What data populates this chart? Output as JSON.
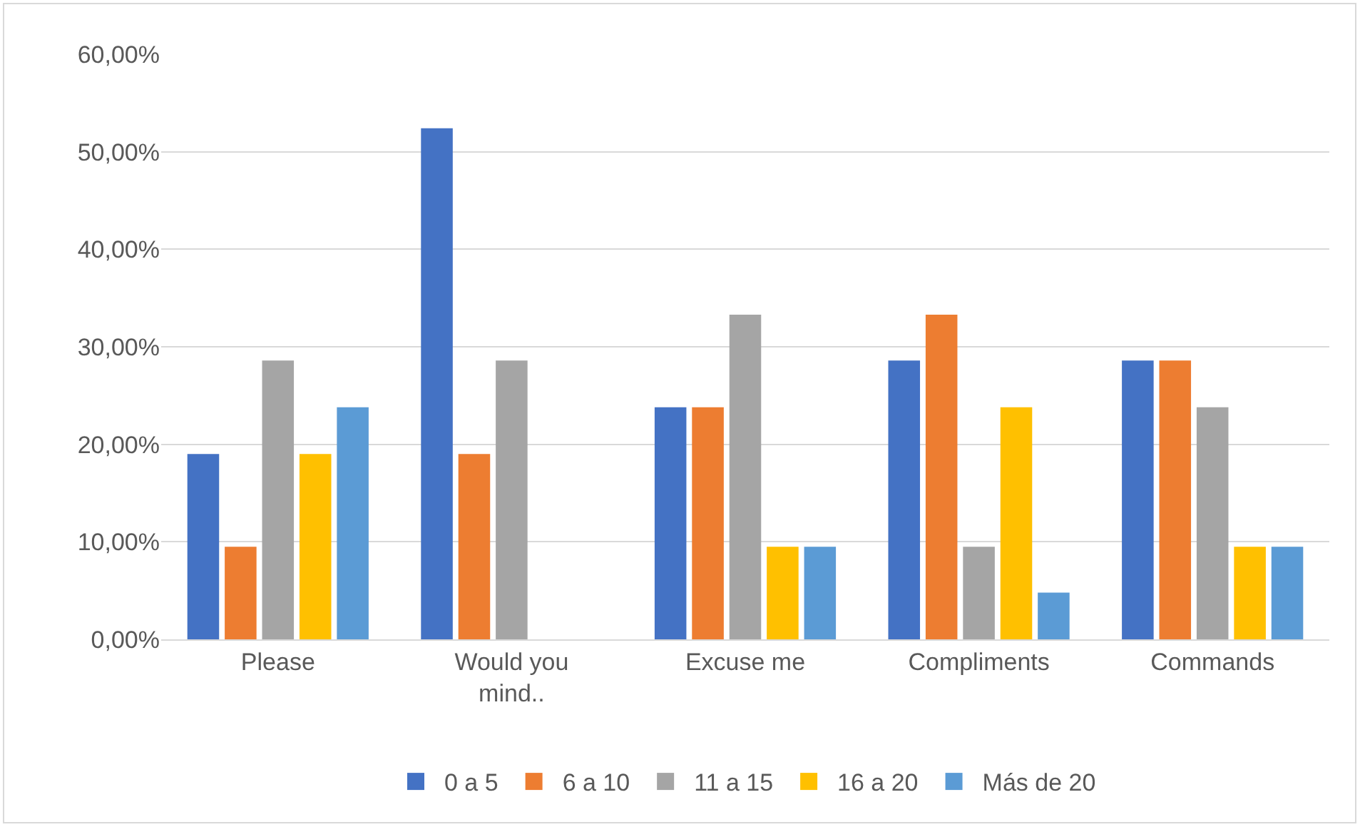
{
  "chart_data": {
    "type": "bar",
    "categories": [
      "Please",
      "Would you mind..",
      "Excuse me",
      "Compliments",
      "Commands"
    ],
    "series": [
      {
        "name": "0 a 5",
        "color": "#4472c4",
        "values": [
          19.0,
          52.4,
          23.8,
          28.6,
          28.6
        ]
      },
      {
        "name": "6 a 10",
        "color": "#ed7d31",
        "values": [
          9.5,
          19.0,
          23.8,
          33.3,
          28.6
        ]
      },
      {
        "name": "11 a 15",
        "color": "#a5a5a5",
        "values": [
          28.6,
          28.6,
          33.3,
          9.5,
          23.8
        ]
      },
      {
        "name": "16 a 20",
        "color": "#ffc000",
        "values": [
          19.0,
          0,
          9.5,
          23.8,
          9.5
        ]
      },
      {
        "name": "Más de 20",
        "color": "#5b9bd5",
        "values": [
          23.8,
          0,
          9.5,
          4.8,
          9.5
        ]
      }
    ],
    "ylim": [
      0,
      60
    ],
    "yticks": [
      {
        "value": 0,
        "label": "0,00%"
      },
      {
        "value": 10,
        "label": "10,00%"
      },
      {
        "value": 20,
        "label": "20,00%"
      },
      {
        "value": 30,
        "label": "30,00%"
      },
      {
        "value": 40,
        "label": "40,00%"
      },
      {
        "value": 50,
        "label": "50,00%"
      },
      {
        "value": 60,
        "label": "60,00%"
      }
    ],
    "grid": "y",
    "legend": "bottom"
  }
}
